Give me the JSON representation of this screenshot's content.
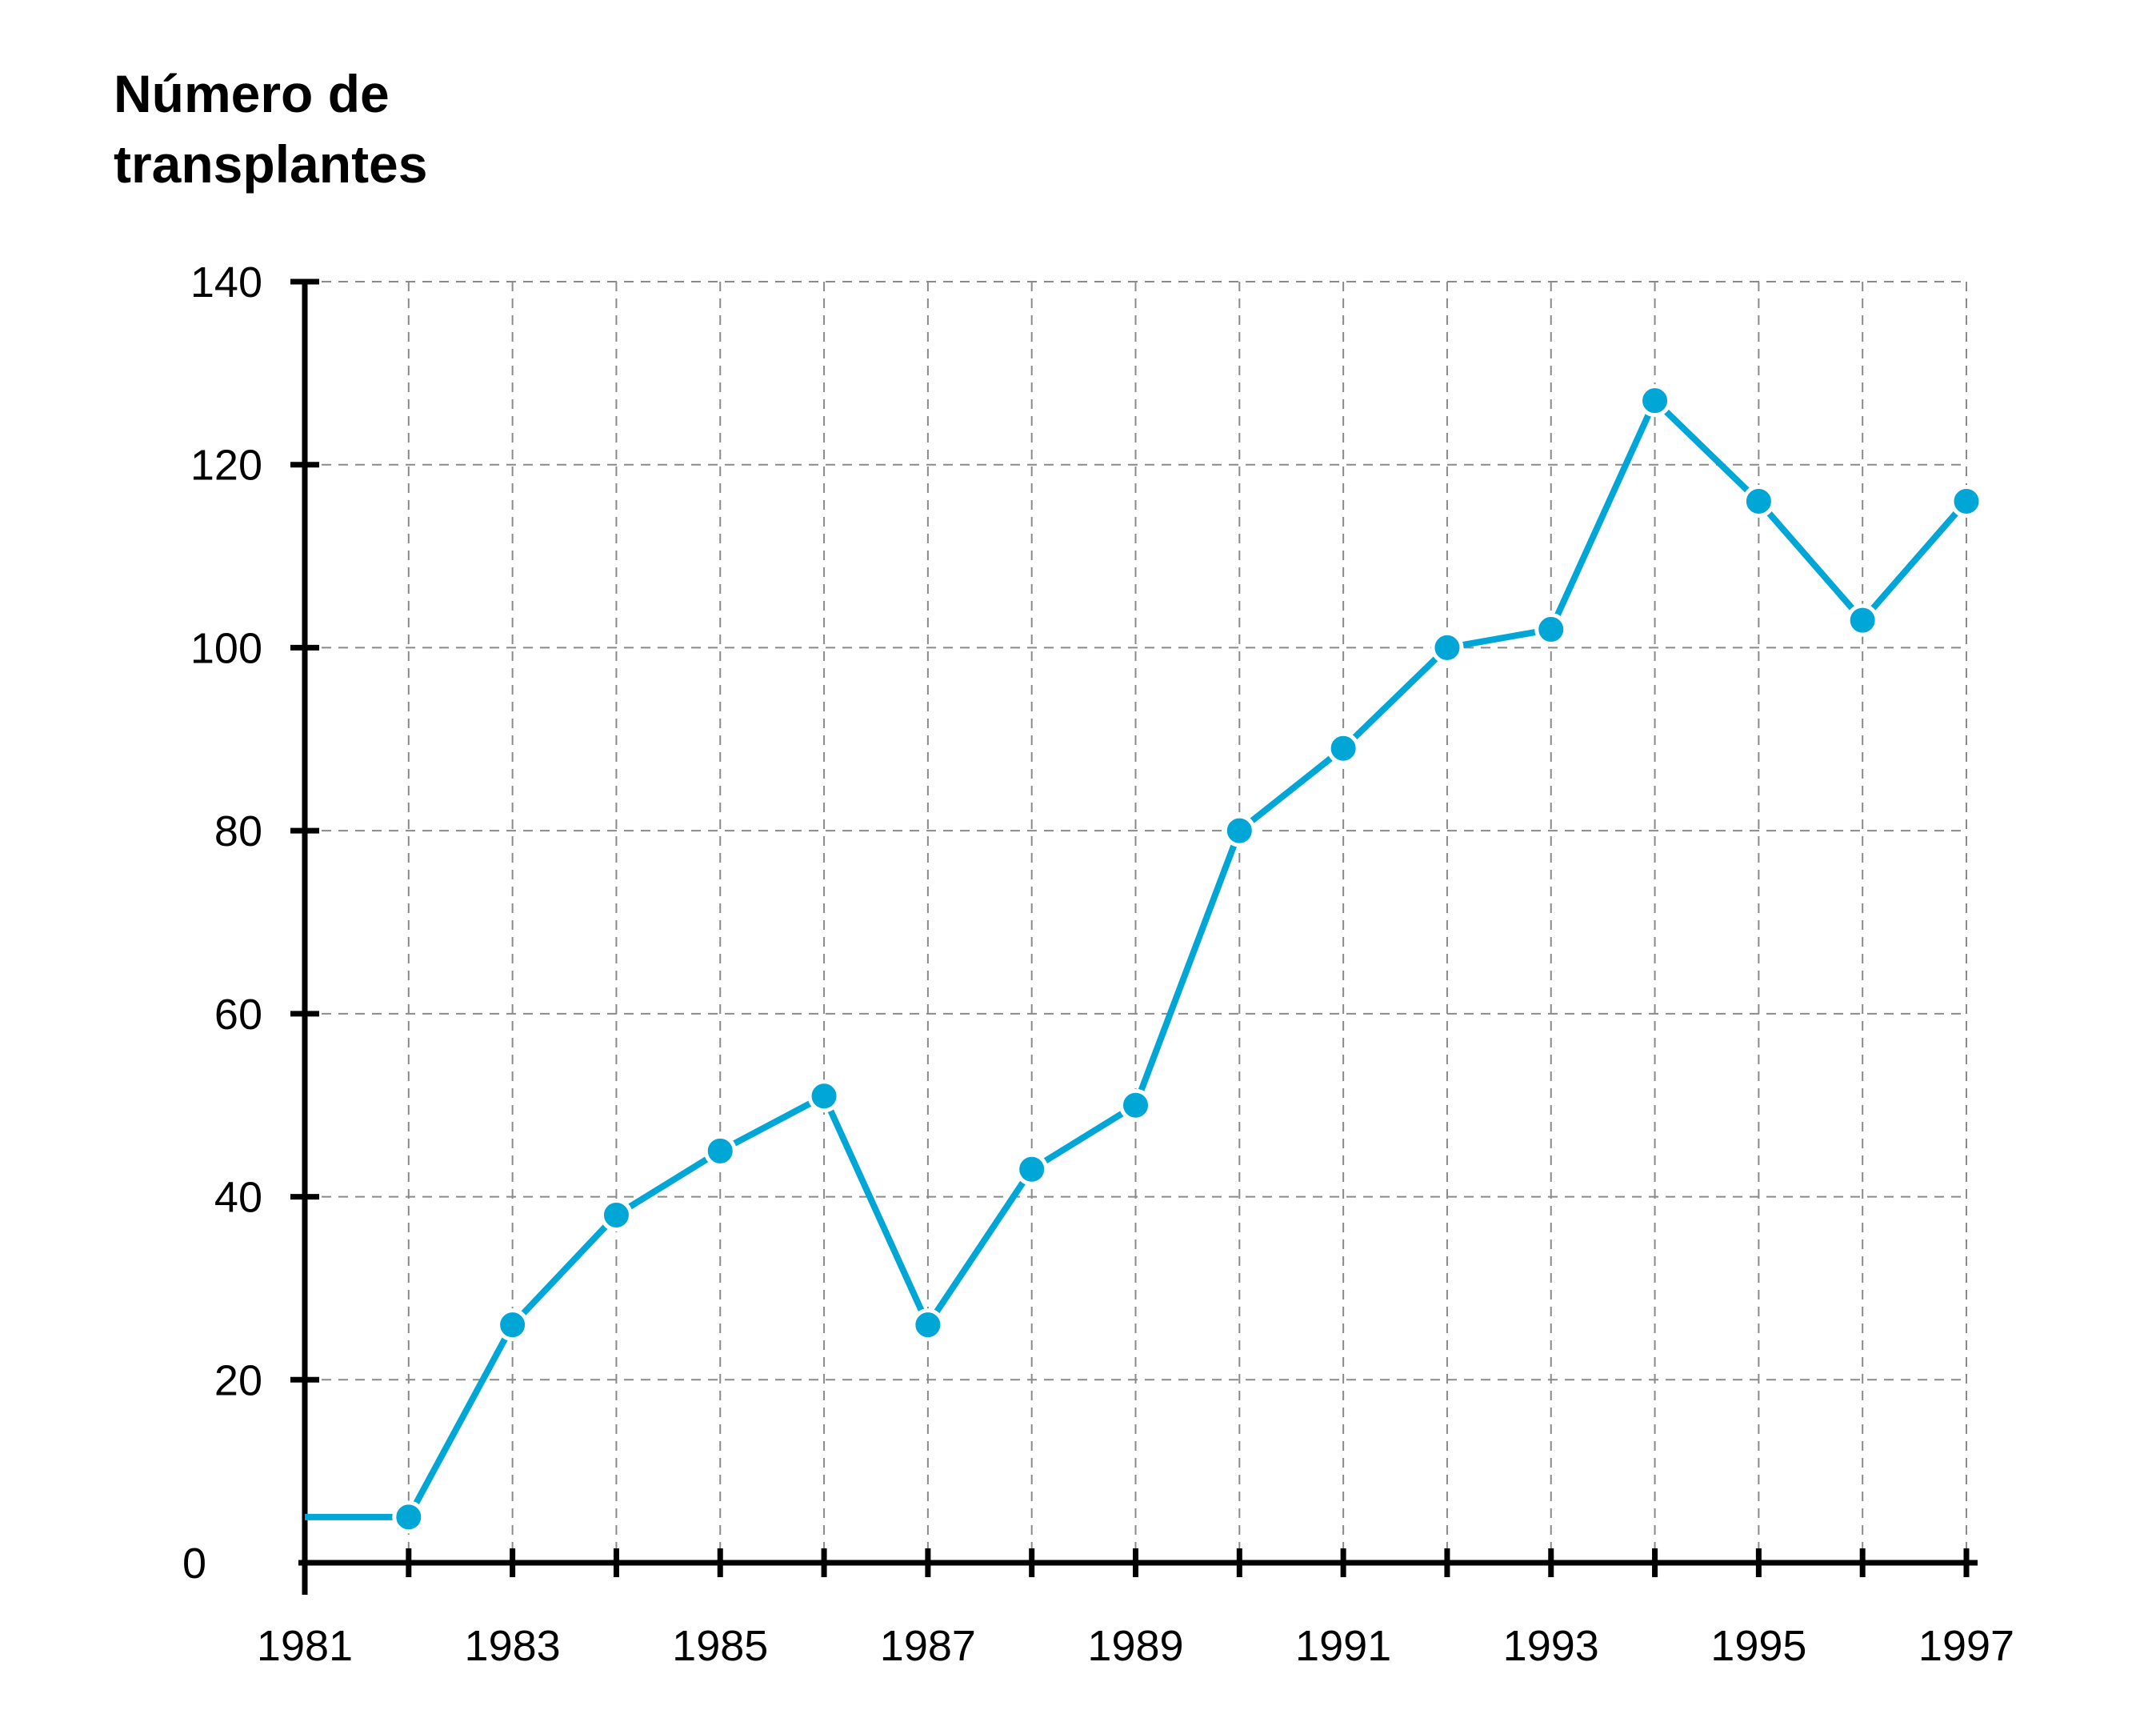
{
  "chart_data": {
    "type": "line",
    "ylabel": [
      "Número de",
      "transplantes"
    ],
    "xlabel": "",
    "x": [
      1981,
      1982,
      1983,
      1984,
      1985,
      1986,
      1987,
      1988,
      1989,
      1990,
      1991,
      1992,
      1993,
      1994,
      1995,
      1996,
      1997
    ],
    "x_tick_labels": [
      "1981",
      "1983",
      "1985",
      "1987",
      "1989",
      "1991",
      "1993",
      "1995",
      "1997"
    ],
    "y_tick_labels": [
      "0",
      "20",
      "40",
      "60",
      "80",
      "100",
      "120",
      "140"
    ],
    "xlim": [
      1981,
      1997
    ],
    "ylim": [
      0,
      140
    ],
    "grid": true,
    "series": [
      {
        "values": [
          5,
          5,
          26,
          38,
          45,
          51,
          26,
          43,
          50,
          80,
          89,
          100,
          102,
          127,
          116,
          103,
          116
        ],
        "markers": [
          false,
          true,
          true,
          true,
          true,
          true,
          true,
          true,
          true,
          true,
          true,
          true,
          true,
          true,
          true,
          true,
          true
        ],
        "color": "#00a6d6"
      }
    ]
  }
}
